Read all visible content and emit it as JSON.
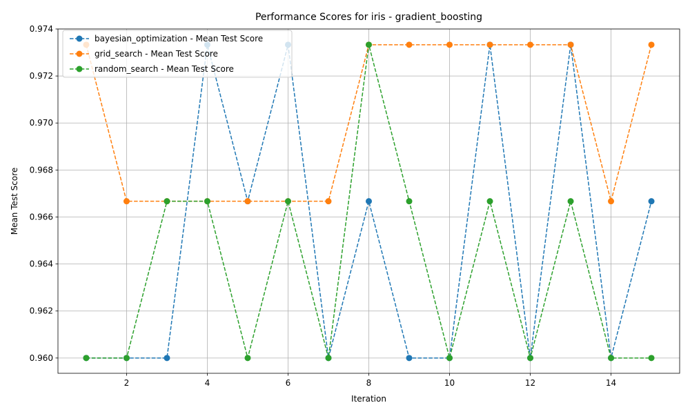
{
  "chart_data": {
    "type": "line",
    "title": "Performance Scores for iris - gradient_boosting",
    "xlabel": "Iteration",
    "ylabel": "Mean Test Score",
    "xlim": [
      0.3,
      15.7
    ],
    "ylim": [
      0.95935,
      0.974
    ],
    "x_ticks": [
      2,
      4,
      6,
      8,
      10,
      12,
      14
    ],
    "y_ticks": [
      0.96,
      0.962,
      0.964,
      0.966,
      0.968,
      0.97,
      0.972,
      0.974
    ],
    "y_tick_labels": [
      "0.960",
      "0.962",
      "0.964",
      "0.966",
      "0.968",
      "0.970",
      "0.972",
      "0.974"
    ],
    "grid": true,
    "legend_position": "top-left",
    "x": [
      1,
      2,
      3,
      4,
      5,
      6,
      7,
      8,
      9,
      10,
      11,
      12,
      13,
      14,
      15
    ],
    "series": [
      {
        "name": "bayesian_optimization - Mean Test Score",
        "color": "#1f77b4",
        "values": [
          0.96,
          0.96,
          0.96,
          0.97333,
          0.96667,
          0.97333,
          0.96,
          0.96667,
          0.96,
          0.96,
          0.97333,
          0.96,
          0.97333,
          0.96,
          0.96667
        ]
      },
      {
        "name": "grid_search - Mean Test Score",
        "color": "#ff7f0e",
        "values": [
          0.97333,
          0.96667,
          0.96667,
          0.96667,
          0.96667,
          0.96667,
          0.96667,
          0.97333,
          0.97333,
          0.97333,
          0.97333,
          0.97333,
          0.97333,
          0.96667,
          0.97333
        ]
      },
      {
        "name": "random_search - Mean Test Score",
        "color": "#2ca02c",
        "values": [
          0.96,
          0.96,
          0.96667,
          0.96667,
          0.96,
          0.96667,
          0.96,
          0.97333,
          0.96667,
          0.96,
          0.96667,
          0.96,
          0.96667,
          0.96,
          0.96
        ]
      }
    ]
  }
}
